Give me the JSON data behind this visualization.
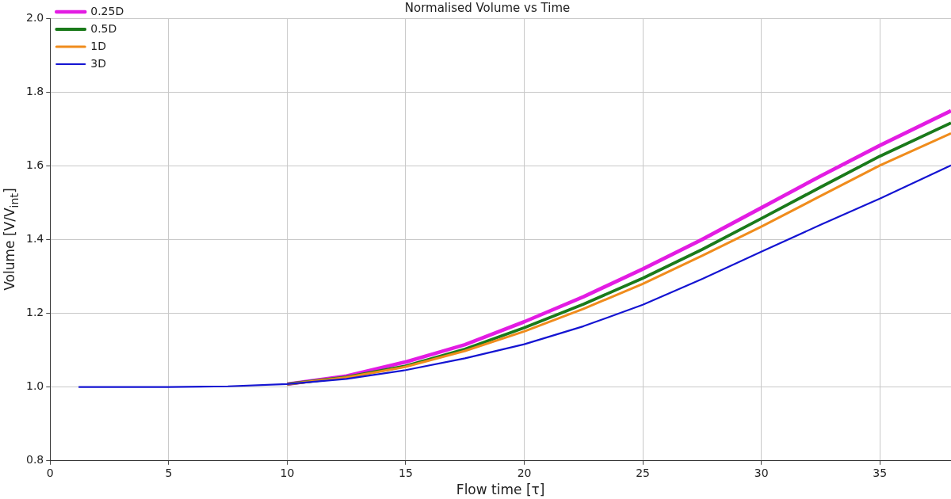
{
  "chart_data": {
    "type": "line",
    "title": "Normalised Volume vs Time",
    "xlabel": "Flow time [τ]",
    "ylabel": "Volume [V/V$_{int}$]",
    "x": [
      1.2,
      5,
      7.5,
      10,
      12.5,
      15,
      17.5,
      20,
      22.5,
      25,
      27.5,
      30,
      32.5,
      35,
      38
    ],
    "series": [
      {
        "name": "0.25D",
        "color": "#e31ce3",
        "values": [
          null,
          null,
          null,
          1.008,
          1.03,
          1.068,
          1.115,
          1.177,
          1.245,
          1.32,
          1.4,
          1.486,
          1.572,
          1.655,
          1.749
        ]
      },
      {
        "name": "0.5D",
        "color": "#1a7a1a",
        "values": [
          null,
          null,
          null,
          1.008,
          1.027,
          1.057,
          1.103,
          1.161,
          1.225,
          1.295,
          1.373,
          1.457,
          1.542,
          1.626,
          1.716
        ]
      },
      {
        "name": "1D",
        "color": "#f08c1c",
        "values": [
          null,
          null,
          null,
          1.008,
          1.026,
          1.055,
          1.098,
          1.151,
          1.212,
          1.28,
          1.356,
          1.435,
          1.518,
          1.601,
          1.688
        ]
      },
      {
        "name": "3D",
        "color": "#1414d2",
        "values": [
          1.0,
          1.0,
          1.002,
          1.008,
          1.022,
          1.046,
          1.078,
          1.116,
          1.165,
          1.223,
          1.293,
          1.367,
          1.44,
          1.511,
          1.601
        ]
      }
    ],
    "xlim": [
      0,
      38
    ],
    "xticks": [
      0,
      5,
      10,
      15,
      20,
      25,
      30,
      35
    ],
    "ylim": [
      0.8,
      2.0
    ],
    "yticks": [
      {
        "value": 0.8,
        "label": "0.8"
      },
      {
        "value": 1.0,
        "label": "1.0"
      },
      {
        "value": 1.2,
        "label": "1.2"
      },
      {
        "value": 1.4,
        "label": "1.4"
      },
      {
        "value": 1.6,
        "label": "1.6"
      },
      {
        "value": 1.8,
        "label": "1.8"
      },
      {
        "value": 2.0,
        "label": "2.0"
      }
    ],
    "grid": true,
    "legend": "top left",
    "marker": "none",
    "line_style": "solid"
  }
}
